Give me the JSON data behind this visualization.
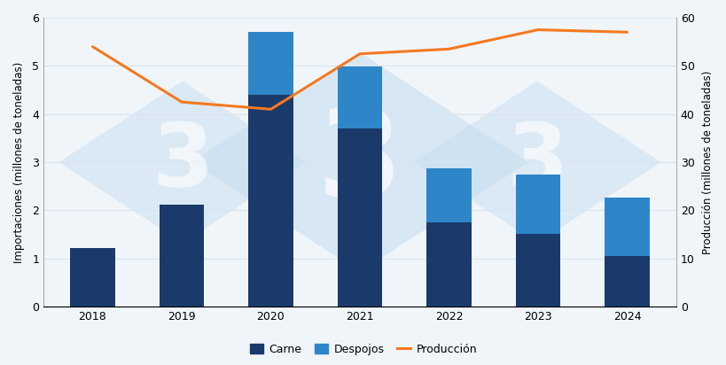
{
  "years": [
    2018,
    2019,
    2020,
    2021,
    2022,
    2023,
    2024
  ],
  "carne": [
    1.22,
    2.12,
    4.4,
    3.7,
    1.75,
    1.52,
    1.05
  ],
  "despojos": [
    0.0,
    0.0,
    1.3,
    1.28,
    1.12,
    1.22,
    1.22
  ],
  "produccion": [
    54.0,
    42.5,
    41.0,
    52.5,
    53.5,
    57.5,
    57.0
  ],
  "bar_color_carne": "#1a3a6b",
  "bar_color_despojos": "#2e86c8",
  "line_color": "#f47920",
  "left_ylabel": "Importaciones (millones de toneladas)",
  "right_ylabel": "Producción (millones de toneladas)",
  "ylim_left": [
    0,
    6
  ],
  "ylim_right": [
    0,
    60
  ],
  "yticks_left": [
    0,
    1,
    2,
    3,
    4,
    5,
    6
  ],
  "yticks_right": [
    0,
    10,
    20,
    30,
    40,
    50,
    60
  ],
  "legend_carne": "Carne",
  "legend_despojos": "Despojos",
  "legend_produccion": "Producción",
  "background_color": "#f0f5fa",
  "plot_bg_color": "#f0f5fa",
  "watermark_color": "#c8dff0",
  "grid_color": "#d8e4ee",
  "bar_width": 0.5,
  "line_width": 2.2,
  "tick_fontsize": 9,
  "label_fontsize": 8.5,
  "legend_fontsize": 9
}
